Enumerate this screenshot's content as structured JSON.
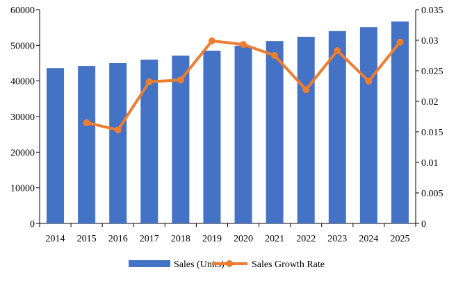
{
  "chart_data": {
    "type": "bar+line",
    "categories": [
      "2014",
      "2015",
      "2016",
      "2017",
      "2018",
      "2019",
      "2020",
      "2021",
      "2022",
      "2023",
      "2024",
      "2025"
    ],
    "series": [
      {
        "name": "Sales (Units)",
        "type": "bar",
        "axis": "left",
        "color": "#4472C4",
        "values": [
          43600,
          44200,
          45000,
          46000,
          47100,
          48500,
          49900,
          51200,
          52400,
          54000,
          55100,
          56700
        ]
      },
      {
        "name": "Sales Growth Rate",
        "type": "line",
        "axis": "right",
        "color": "#ED7D31",
        "values": [
          null,
          0.0165,
          0.0153,
          0.0232,
          0.0235,
          0.0299,
          0.0293,
          0.0275,
          0.0219,
          0.0283,
          0.0233,
          0.0297
        ]
      }
    ],
    "y_left": {
      "range": [
        0,
        60000
      ],
      "ticks": [
        "0",
        "10000",
        "20000",
        "30000",
        "40000",
        "50000",
        "60000"
      ]
    },
    "y_right": {
      "range": [
        0,
        0.035
      ],
      "ticks": [
        "0",
        "0.005",
        "0.01",
        "0.015",
        "0.02",
        "0.025",
        "0.03",
        "0.035"
      ]
    },
    "grid": false,
    "legend": "bottom"
  }
}
